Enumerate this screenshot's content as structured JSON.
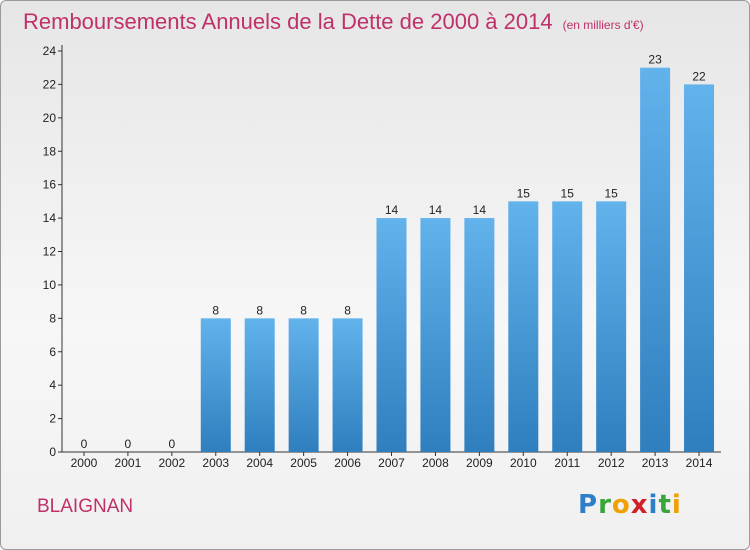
{
  "title": "Remboursements Annuels de la Dette de 2000 à 2014",
  "unit": "(en milliers d'€)",
  "commune": "BLAIGNAN",
  "logo": "Proxiti",
  "chart_data": {
    "type": "bar",
    "title": "Remboursements Annuels de la Dette de 2000 à 2014",
    "subtitle": "(en milliers d'€)",
    "xlabel": "",
    "ylabel": "",
    "categories": [
      "2000",
      "2001",
      "2002",
      "2003",
      "2004",
      "2005",
      "2006",
      "2007",
      "2008",
      "2009",
      "2010",
      "2011",
      "2012",
      "2013",
      "2014"
    ],
    "values": [
      0,
      0,
      0,
      8,
      8,
      8,
      8,
      14,
      14,
      14,
      15,
      15,
      15,
      23,
      22
    ],
    "ylim": [
      0,
      24
    ],
    "yticks": [
      0,
      2,
      4,
      6,
      8,
      10,
      12,
      14,
      16,
      18,
      20,
      22,
      24
    ],
    "grid": false,
    "bar_color": "#4d9fdd"
  }
}
